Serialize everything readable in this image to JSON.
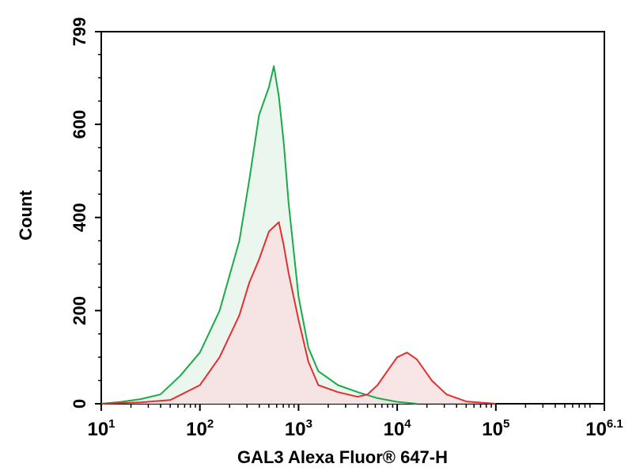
{
  "chart_data": {
    "type": "area",
    "title": "",
    "xlabel": "GAL3 Alexa Fluor® 647-H",
    "ylabel": "Count",
    "x_scale": "log",
    "xlim": [
      1,
      6.1
    ],
    "ylim": [
      0,
      799
    ],
    "y_ticks": [
      0,
      200,
      400,
      600,
      799
    ],
    "x_ticks": [
      {
        "value": 1,
        "base": "10",
        "exp": "1"
      },
      {
        "value": 2,
        "base": "10",
        "exp": "2"
      },
      {
        "value": 3,
        "base": "10",
        "exp": "3"
      },
      {
        "value": 4,
        "base": "10",
        "exp": "4"
      },
      {
        "value": 5,
        "base": "10",
        "exp": "5"
      },
      {
        "value": 6.1,
        "base": "10",
        "exp": "6.1"
      }
    ],
    "grid": false,
    "series": [
      {
        "color": "#1aaa4a",
        "fill": "#e8f5ec",
        "x": [
          1.0,
          1.2,
          1.4,
          1.6,
          1.8,
          2.0,
          2.2,
          2.4,
          2.5,
          2.6,
          2.7,
          2.75,
          2.8,
          2.85,
          2.9,
          3.0,
          3.1,
          3.2,
          3.4,
          3.6,
          3.8,
          4.0,
          4.2
        ],
        "y": [
          0,
          4,
          10,
          20,
          60,
          110,
          200,
          350,
          480,
          620,
          680,
          725,
          660,
          560,
          430,
          230,
          120,
          70,
          40,
          25,
          12,
          4,
          0
        ]
      },
      {
        "color": "#e03030",
        "fill": "#f7e0e0",
        "x": [
          1.0,
          1.4,
          1.7,
          2.0,
          2.2,
          2.4,
          2.5,
          2.6,
          2.7,
          2.8,
          2.85,
          2.9,
          3.0,
          3.1,
          3.2,
          3.4,
          3.6,
          3.7,
          3.8,
          3.9,
          4.0,
          4.1,
          4.2,
          4.35,
          4.5,
          4.7,
          5.0
        ],
        "y": [
          0,
          3,
          8,
          40,
          100,
          190,
          260,
          310,
          370,
          390,
          340,
          280,
          180,
          90,
          40,
          25,
          15,
          20,
          40,
          70,
          100,
          110,
          95,
          50,
          20,
          5,
          0
        ]
      }
    ]
  }
}
